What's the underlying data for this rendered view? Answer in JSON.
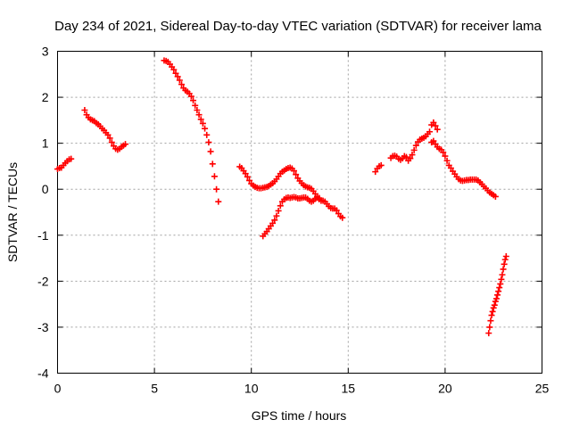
{
  "chart_data": {
    "type": "scatter",
    "title": "Day 234 of 2021, Sidereal Day-to-day VTEC variation (SDTVAR) for receiver lama",
    "xlabel": "GPS time / hours",
    "ylabel": "SDTVAR / TECUs",
    "xlim": [
      0,
      25
    ],
    "ylim": [
      -4,
      3
    ],
    "xticks": [
      "0",
      "5",
      "10",
      "15",
      "20",
      "25"
    ],
    "yticks": [
      "-4",
      "-3",
      "-2",
      "-1",
      "0",
      "1",
      "2",
      "3"
    ],
    "grid": true,
    "marker": "plus",
    "marker_color": "#ff0000",
    "series": [
      {
        "points": [
          [
            0.0,
            0.44
          ],
          [
            0.1,
            0.46
          ],
          [
            0.2,
            0.47
          ],
          [
            0.3,
            0.52
          ],
          [
            0.4,
            0.57
          ],
          [
            0.5,
            0.61
          ],
          [
            0.6,
            0.65
          ],
          [
            0.7,
            0.66
          ],
          [
            1.4,
            1.72
          ],
          [
            1.5,
            1.62
          ],
          [
            1.6,
            1.56
          ],
          [
            1.7,
            1.52
          ],
          [
            1.8,
            1.5
          ],
          [
            1.9,
            1.48
          ],
          [
            2.0,
            1.44
          ],
          [
            2.1,
            1.41
          ],
          [
            2.2,
            1.37
          ],
          [
            2.3,
            1.32
          ],
          [
            2.4,
            1.28
          ],
          [
            2.5,
            1.23
          ],
          [
            2.6,
            1.18
          ],
          [
            2.7,
            1.11
          ],
          [
            2.8,
            1.02
          ],
          [
            2.9,
            0.94
          ],
          [
            3.0,
            0.88
          ],
          [
            3.1,
            0.86
          ],
          [
            3.2,
            0.88
          ],
          [
            3.3,
            0.92
          ],
          [
            3.4,
            0.95
          ],
          [
            3.5,
            0.98
          ],
          [
            5.5,
            2.8
          ],
          [
            5.6,
            2.79
          ],
          [
            5.7,
            2.77
          ],
          [
            5.8,
            2.72
          ],
          [
            5.9,
            2.66
          ],
          [
            6.0,
            2.6
          ],
          [
            6.1,
            2.52
          ],
          [
            6.2,
            2.45
          ],
          [
            6.3,
            2.37
          ],
          [
            6.4,
            2.28
          ],
          [
            6.5,
            2.2
          ],
          [
            6.6,
            2.15
          ],
          [
            6.7,
            2.12
          ],
          [
            6.8,
            2.08
          ],
          [
            6.9,
            2.02
          ],
          [
            7.0,
            1.93
          ],
          [
            7.1,
            1.82
          ],
          [
            7.2,
            1.72
          ],
          [
            7.3,
            1.62
          ],
          [
            7.4,
            1.52
          ],
          [
            7.5,
            1.43
          ],
          [
            7.6,
            1.32
          ],
          [
            7.7,
            1.18
          ],
          [
            7.8,
            1.02
          ],
          [
            7.9,
            0.82
          ],
          [
            8.0,
            0.55
          ],
          [
            8.1,
            0.28
          ],
          [
            8.2,
            0.0
          ],
          [
            8.3,
            -0.27
          ],
          [
            9.4,
            0.49
          ],
          [
            9.5,
            0.46
          ],
          [
            9.6,
            0.4
          ],
          [
            9.7,
            0.34
          ],
          [
            9.8,
            0.27
          ],
          [
            9.9,
            0.19
          ],
          [
            10.0,
            0.12
          ],
          [
            10.1,
            0.08
          ],
          [
            10.2,
            0.05
          ],
          [
            10.3,
            0.03
          ],
          [
            10.4,
            0.02
          ],
          [
            10.5,
            0.02
          ],
          [
            10.6,
            0.03
          ],
          [
            10.7,
            0.04
          ],
          [
            10.8,
            0.05
          ],
          [
            10.9,
            0.07
          ],
          [
            11.0,
            0.1
          ],
          [
            11.1,
            0.13
          ],
          [
            11.2,
            0.17
          ],
          [
            11.3,
            0.22
          ],
          [
            11.4,
            0.28
          ],
          [
            11.5,
            0.34
          ],
          [
            11.6,
            0.38
          ],
          [
            11.7,
            0.41
          ],
          [
            11.8,
            0.44
          ],
          [
            11.9,
            0.46
          ],
          [
            12.0,
            0.47
          ],
          [
            12.1,
            0.45
          ],
          [
            12.2,
            0.4
          ],
          [
            12.3,
            0.32
          ],
          [
            12.4,
            0.24
          ],
          [
            12.5,
            0.18
          ],
          [
            12.6,
            0.13
          ],
          [
            12.7,
            0.09
          ],
          [
            12.8,
            0.06
          ],
          [
            12.9,
            0.04
          ],
          [
            13.0,
            0.03
          ],
          [
            13.1,
            0.01
          ],
          [
            13.2,
            -0.04
          ],
          [
            13.3,
            -0.1
          ],
          [
            13.4,
            -0.16
          ],
          [
            13.5,
            -0.22
          ],
          [
            13.6,
            -0.25
          ],
          [
            13.7,
            -0.25
          ],
          [
            13.8,
            -0.27
          ],
          [
            13.9,
            -0.32
          ],
          [
            14.0,
            -0.37
          ],
          [
            14.1,
            -0.41
          ],
          [
            14.2,
            -0.42
          ],
          [
            14.3,
            -0.42
          ],
          [
            14.4,
            -0.46
          ],
          [
            14.5,
            -0.53
          ],
          [
            14.6,
            -0.59
          ],
          [
            14.7,
            -0.62
          ],
          [
            10.6,
            -1.02
          ],
          [
            10.7,
            -0.97
          ],
          [
            10.8,
            -0.92
          ],
          [
            10.9,
            -0.86
          ],
          [
            11.0,
            -0.8
          ],
          [
            11.1,
            -0.74
          ],
          [
            11.2,
            -0.67
          ],
          [
            11.3,
            -0.58
          ],
          [
            11.4,
            -0.47
          ],
          [
            11.5,
            -0.36
          ],
          [
            11.6,
            -0.27
          ],
          [
            11.7,
            -0.22
          ],
          [
            11.8,
            -0.19
          ],
          [
            11.9,
            -0.18
          ],
          [
            12.0,
            -0.19
          ],
          [
            12.1,
            -0.18
          ],
          [
            12.2,
            -0.17
          ],
          [
            12.3,
            -0.18
          ],
          [
            12.4,
            -0.2
          ],
          [
            12.5,
            -0.2
          ],
          [
            12.6,
            -0.19
          ],
          [
            12.7,
            -0.18
          ],
          [
            12.8,
            -0.18
          ],
          [
            12.9,
            -0.21
          ],
          [
            13.0,
            -0.25
          ],
          [
            13.1,
            -0.27
          ],
          [
            13.2,
            -0.25
          ],
          [
            13.3,
            -0.21
          ],
          [
            13.4,
            -0.18
          ],
          [
            13.5,
            -0.19
          ],
          [
            16.4,
            0.38
          ],
          [
            16.5,
            0.45
          ],
          [
            16.6,
            0.5
          ],
          [
            16.7,
            0.52
          ],
          [
            17.2,
            0.68
          ],
          [
            17.3,
            0.72
          ],
          [
            17.4,
            0.73
          ],
          [
            17.5,
            0.71
          ],
          [
            17.6,
            0.66
          ],
          [
            17.7,
            0.64
          ],
          [
            17.8,
            0.67
          ],
          [
            17.9,
            0.72
          ],
          [
            18.0,
            0.7
          ],
          [
            18.1,
            0.62
          ],
          [
            18.2,
            0.67
          ],
          [
            18.3,
            0.75
          ],
          [
            18.4,
            0.85
          ],
          [
            18.5,
            0.95
          ],
          [
            18.6,
            1.03
          ],
          [
            18.7,
            1.08
          ],
          [
            18.8,
            1.1
          ],
          [
            18.9,
            1.12
          ],
          [
            19.0,
            1.15
          ],
          [
            19.1,
            1.2
          ],
          [
            19.2,
            1.25
          ],
          [
            19.3,
            1.4
          ],
          [
            19.4,
            1.45
          ],
          [
            19.5,
            1.38
          ],
          [
            19.6,
            1.3
          ],
          [
            19.3,
            1.02
          ],
          [
            19.4,
            1.05
          ],
          [
            19.5,
            0.98
          ],
          [
            19.6,
            0.92
          ],
          [
            19.7,
            0.88
          ],
          [
            19.8,
            0.86
          ],
          [
            19.9,
            0.8
          ],
          [
            20.0,
            0.72
          ],
          [
            20.1,
            0.62
          ],
          [
            20.2,
            0.52
          ],
          [
            20.3,
            0.46
          ],
          [
            20.4,
            0.39
          ],
          [
            20.5,
            0.33
          ],
          [
            20.6,
            0.27
          ],
          [
            20.7,
            0.22
          ],
          [
            20.8,
            0.19
          ],
          [
            20.9,
            0.18
          ],
          [
            21.0,
            0.19
          ],
          [
            21.1,
            0.2
          ],
          [
            21.2,
            0.2
          ],
          [
            21.3,
            0.21
          ],
          [
            21.4,
            0.21
          ],
          [
            21.5,
            0.21
          ],
          [
            21.6,
            0.21
          ],
          [
            21.7,
            0.19
          ],
          [
            21.8,
            0.15
          ],
          [
            21.9,
            0.11
          ],
          [
            22.0,
            0.06
          ],
          [
            22.1,
            0.02
          ],
          [
            22.2,
            -0.03
          ],
          [
            22.3,
            -0.07
          ],
          [
            22.4,
            -0.1
          ],
          [
            22.5,
            -0.13
          ],
          [
            22.6,
            -0.16
          ],
          [
            22.25,
            -3.13
          ],
          [
            22.3,
            -3.0
          ],
          [
            22.35,
            -2.86
          ],
          [
            22.4,
            -2.74
          ],
          [
            22.45,
            -2.66
          ],
          [
            22.5,
            -2.58
          ],
          [
            22.55,
            -2.52
          ],
          [
            22.6,
            -2.44
          ],
          [
            22.65,
            -2.38
          ],
          [
            22.7,
            -2.3
          ],
          [
            22.75,
            -2.22
          ],
          [
            22.8,
            -2.14
          ],
          [
            22.85,
            -2.06
          ],
          [
            22.9,
            -1.96
          ],
          [
            22.95,
            -1.86
          ],
          [
            23.0,
            -1.74
          ],
          [
            23.05,
            -1.63
          ],
          [
            23.1,
            -1.53
          ],
          [
            23.15,
            -1.46
          ]
        ]
      }
    ]
  }
}
